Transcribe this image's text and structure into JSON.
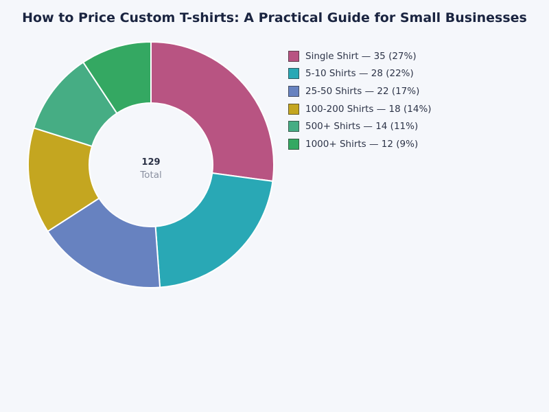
{
  "chart_data": {
    "type": "pie",
    "variant": "donut",
    "title": "How to Price Custom T-shirts: A Practical Guide for Small Businesses",
    "categories": [
      "Single Shirt",
      "5-10 Shirts",
      "25-50 Shirts",
      "100-200 Shirts",
      "500+ Shirts",
      "1000+ Shirts"
    ],
    "values": [
      35,
      28,
      22,
      18,
      14,
      12
    ],
    "colors": [
      "#b85482",
      "#29a8b5",
      "#6782c0",
      "#c4a620",
      "#46ad84",
      "#34a862"
    ],
    "center_value": "129",
    "center_label": "Total",
    "legend_position": "right"
  }
}
